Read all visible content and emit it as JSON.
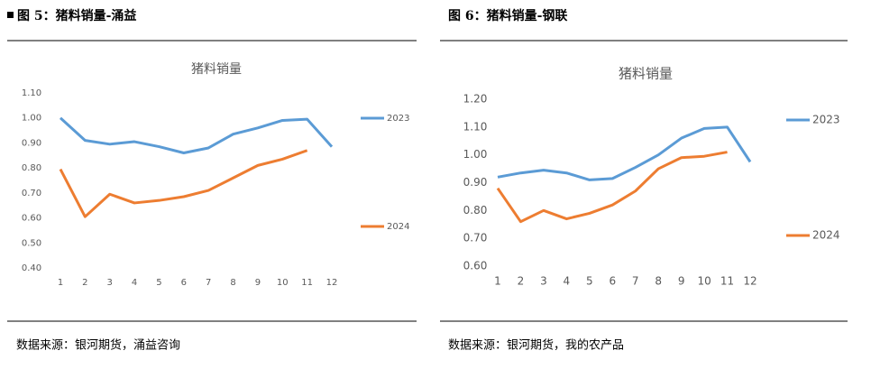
{
  "chart_data": [
    {
      "type": "line",
      "title": "猪料销量",
      "categories": [
        "1",
        "2",
        "3",
        "4",
        "5",
        "6",
        "7",
        "8",
        "9",
        "10",
        "11",
        "12"
      ],
      "series": [
        {
          "name": "2023",
          "color": "#5b9bd5",
          "values": [
            1.0,
            0.91,
            0.895,
            0.905,
            0.885,
            0.86,
            0.88,
            0.935,
            0.96,
            0.99,
            0.995,
            0.885
          ]
        },
        {
          "name": "2024",
          "color": "#ed7d31",
          "values": [
            0.795,
            0.605,
            0.695,
            0.66,
            0.67,
            0.685,
            0.71,
            0.76,
            0.81,
            0.835,
            0.87,
            null
          ]
        }
      ],
      "ylim": [
        0.4,
        1.1
      ],
      "yticks": [
        {
          "value": 0.4,
          "label": "0.40"
        },
        {
          "value": 0.5,
          "label": "0.50"
        },
        {
          "value": 0.6,
          "label": "0.60"
        },
        {
          "value": 0.7,
          "label": "0.70"
        },
        {
          "value": 0.8,
          "label": "0.80"
        },
        {
          "value": 0.9,
          "label": "0.90"
        },
        {
          "value": 1.0,
          "label": "1.00"
        },
        {
          "value": 1.1,
          "label": "1.10"
        }
      ],
      "grid": false,
      "legend": "right"
    },
    {
      "type": "line",
      "title": "猪料销量",
      "categories": [
        "1",
        "2",
        "3",
        "4",
        "5",
        "6",
        "7",
        "8",
        "9",
        "10",
        "11",
        "12"
      ],
      "series": [
        {
          "name": "2023",
          "color": "#5b9bd5",
          "values": [
            0.92,
            0.935,
            0.945,
            0.935,
            0.91,
            0.915,
            0.955,
            1.0,
            1.06,
            1.095,
            1.1,
            0.975
          ]
        },
        {
          "name": "2024",
          "color": "#ed7d31",
          "values": [
            0.88,
            0.76,
            0.8,
            0.77,
            0.79,
            0.82,
            0.87,
            0.95,
            0.99,
            0.995,
            1.01,
            null
          ]
        }
      ],
      "ylim": [
        0.6,
        1.2
      ],
      "yticks": [
        {
          "value": 0.6,
          "label": "0.60"
        },
        {
          "value": 0.7,
          "label": "0.70"
        },
        {
          "value": 0.8,
          "label": "0.80"
        },
        {
          "value": 0.9,
          "label": "0.90"
        },
        {
          "value": 1.0,
          "label": "1.00"
        },
        {
          "value": 1.1,
          "label": "1.10"
        },
        {
          "value": 1.2,
          "label": "1.20"
        }
      ],
      "grid": false,
      "legend": "right"
    }
  ],
  "captions": [
    "图 5：猪料销量-涌益",
    "图 6：猪料销量-钢联"
  ],
  "sources": [
    "数据来源：银河期货，涌益咨询",
    "数据来源：银河期货，我的农产品"
  ]
}
